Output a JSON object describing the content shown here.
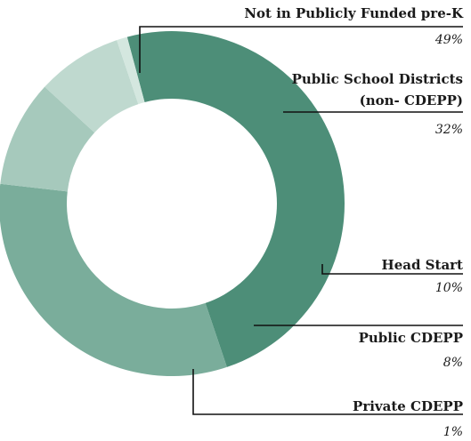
{
  "chart_data": {
    "type": "pie",
    "donut": true,
    "legend": "none",
    "slices": [
      {
        "label": "Not in Publicly Funded pre-K",
        "label_lines": [
          "Not in Publicly Funded pre-K"
        ],
        "value": 49,
        "value_label": "49%",
        "color": "#4d8e78"
      },
      {
        "label": "Public School Districts (non- CDEPP)",
        "label_lines": [
          "Public School Districts",
          "(non- CDEPP)"
        ],
        "value": 32,
        "value_label": "32%",
        "color": "#7aad9b"
      },
      {
        "label": "Head Start",
        "label_lines": [
          "Head Start"
        ],
        "value": 10,
        "value_label": "10%",
        "color": "#a6c9bc"
      },
      {
        "label": "Public CDEPP",
        "label_lines": [
          "Public CDEPP"
        ],
        "value": 8,
        "value_label": "8%",
        "color": "#bfd9cf"
      },
      {
        "label": "Private CDEPP",
        "label_lines": [
          "Private CDEPP"
        ],
        "value": 1,
        "value_label": "1%",
        "color": "#d4e7df"
      }
    ]
  }
}
